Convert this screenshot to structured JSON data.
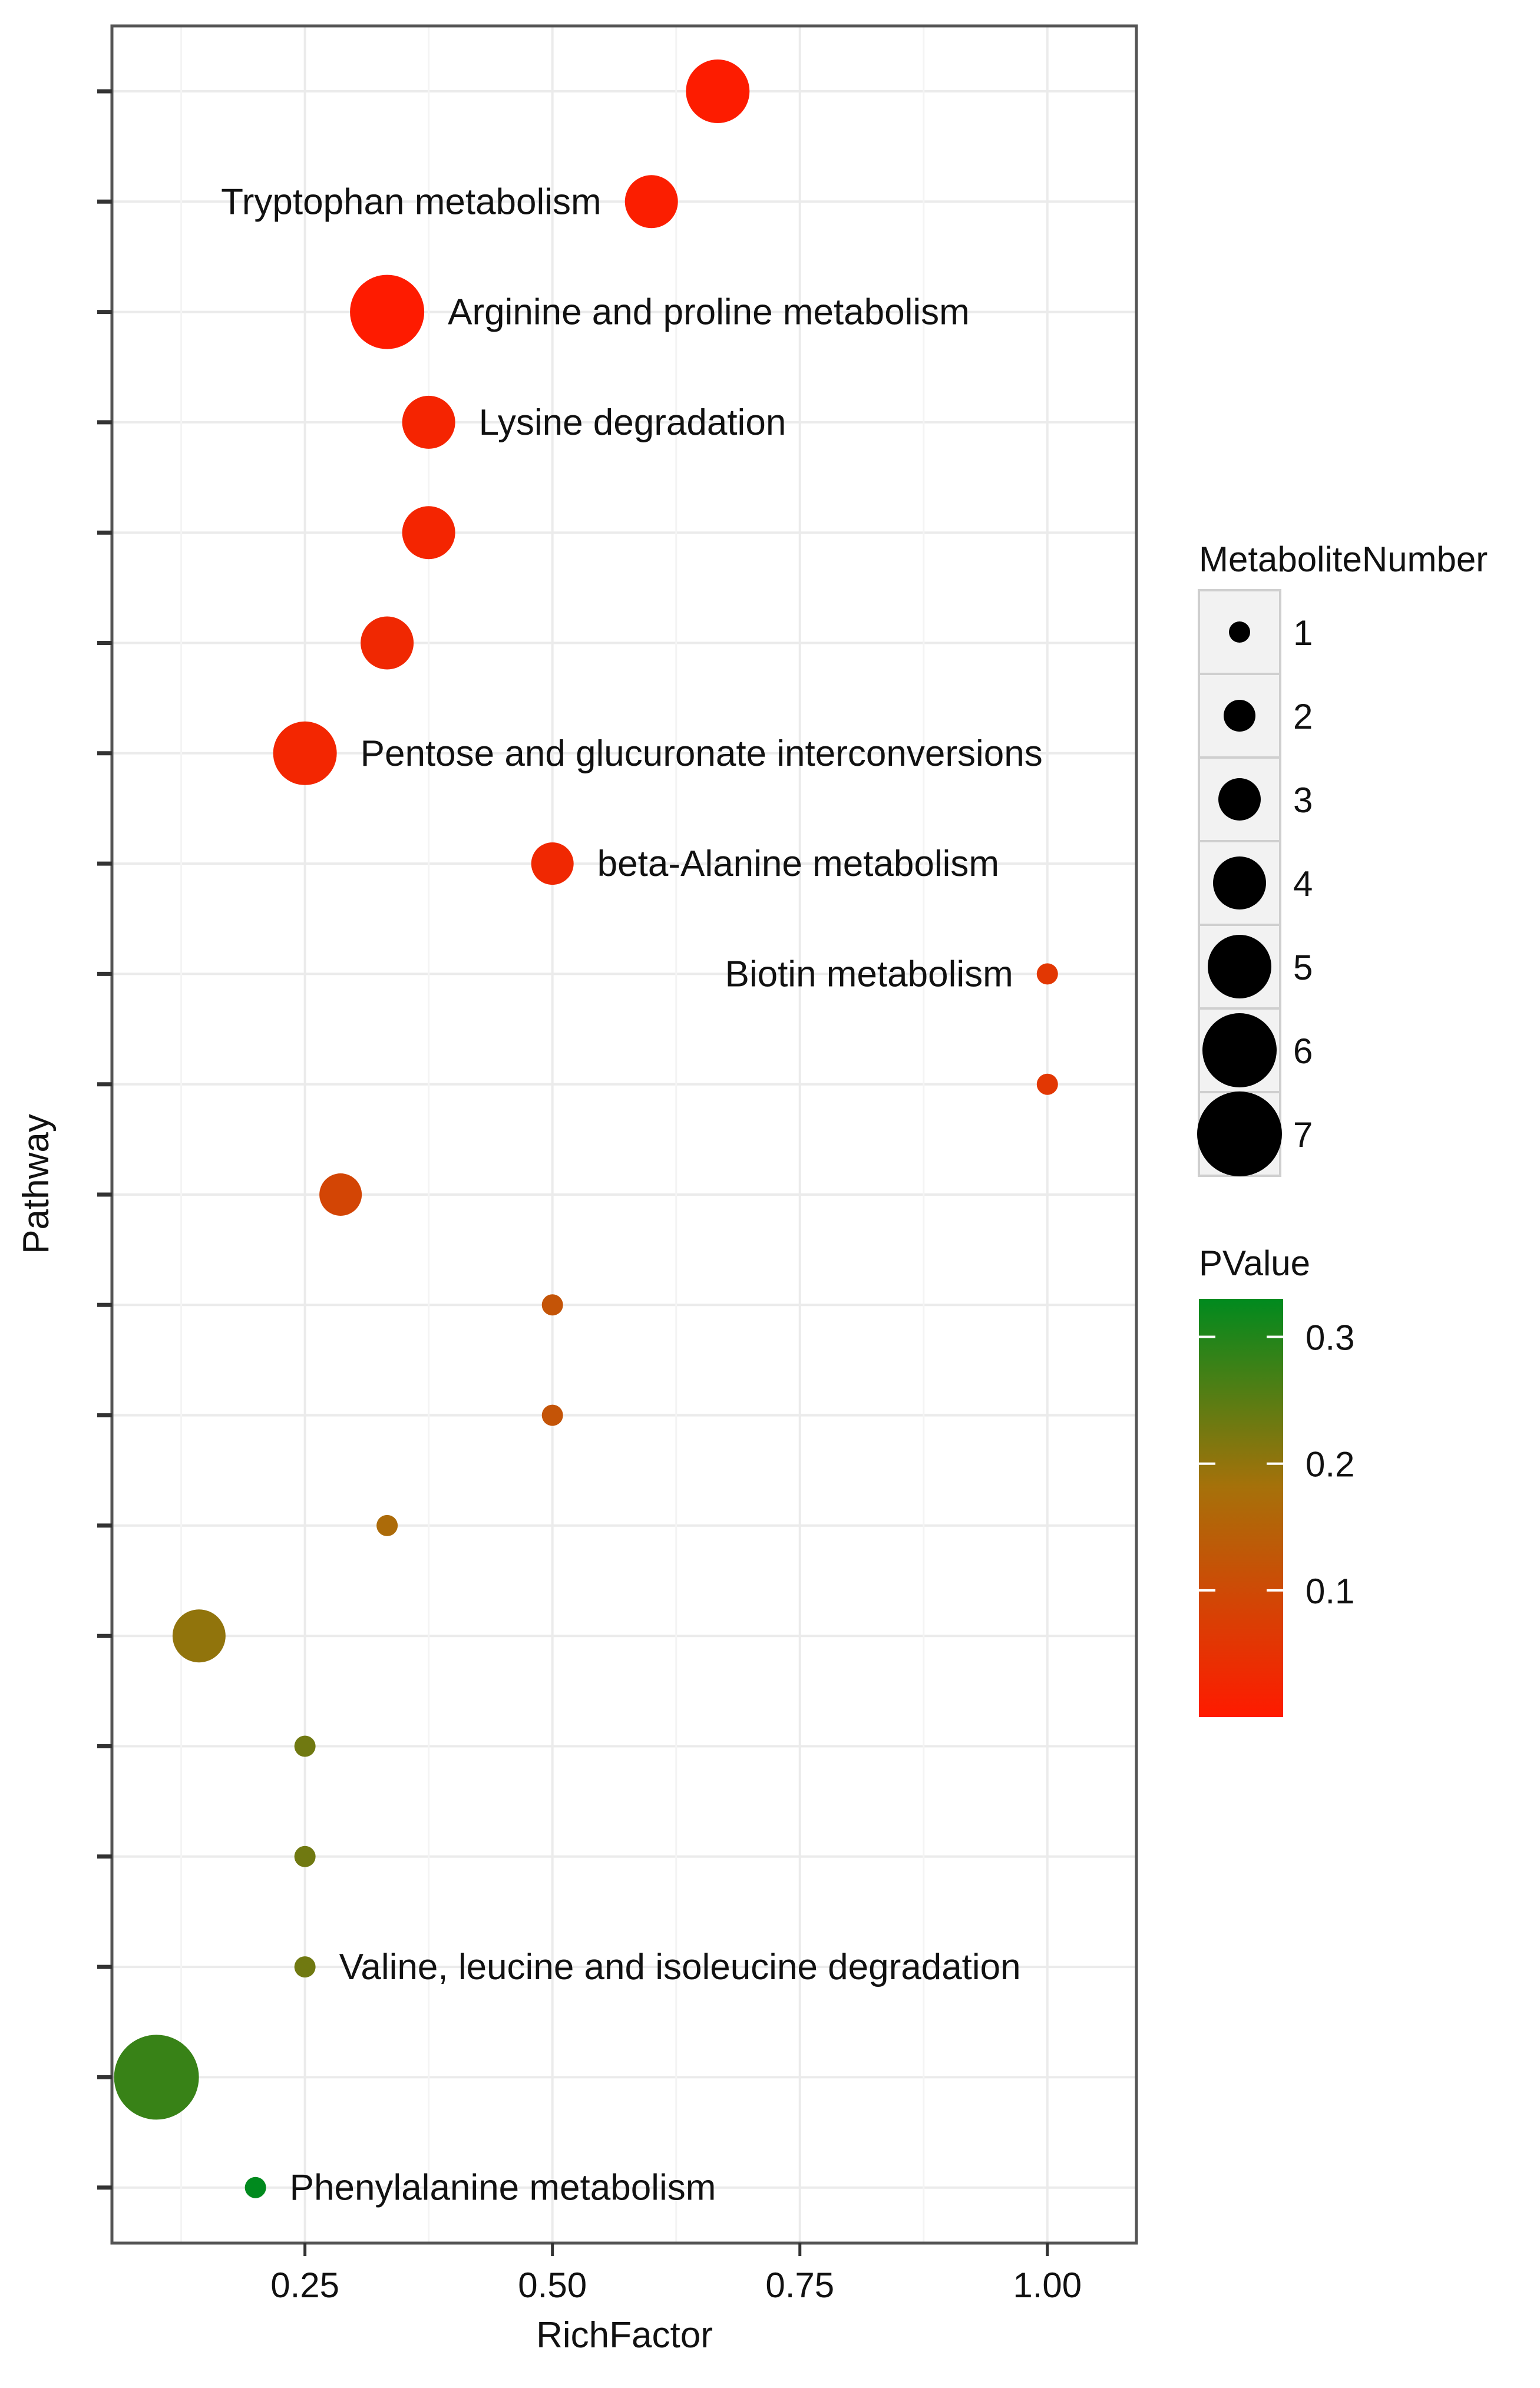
{
  "chart_data": {
    "type": "scatter",
    "xlabel": "RichFactor",
    "ylabel": "Pathway",
    "xlim": [
      0.055,
      1.09
    ],
    "x_ticks": [
      0.25,
      0.5,
      0.75,
      1.0
    ],
    "x_tick_labels": [
      "0.25",
      "0.50",
      "0.75",
      "1.00"
    ],
    "grid": true,
    "points": [
      {
        "row": 1,
        "x": 0.667,
        "size": 5,
        "pvalue": 0.004,
        "label": ""
      },
      {
        "row": 2,
        "x": 0.6,
        "size": 4,
        "pvalue": 0.008,
        "label": "Tryptophan metabolism",
        "label_side": "left"
      },
      {
        "row": 3,
        "x": 0.333,
        "size": 6,
        "pvalue": 0.003,
        "label": "Arginine and proline metabolism",
        "label_side": "right"
      },
      {
        "row": 4,
        "x": 0.375,
        "size": 4,
        "pvalue": 0.02,
        "label": "Lysine degradation",
        "label_side": "right"
      },
      {
        "row": 5,
        "x": 0.375,
        "size": 4,
        "pvalue": 0.022,
        "label": ""
      },
      {
        "row": 6,
        "x": 0.333,
        "size": 4,
        "pvalue": 0.03,
        "label": ""
      },
      {
        "row": 7,
        "x": 0.25,
        "size": 5,
        "pvalue": 0.025,
        "label": "Pentose and glucuronate interconversions",
        "label_side": "right"
      },
      {
        "row": 8,
        "x": 0.5,
        "size": 3,
        "pvalue": 0.03,
        "label": "beta-Alanine metabolism",
        "label_side": "right"
      },
      {
        "row": 9,
        "x": 1.0,
        "size": 1,
        "pvalue": 0.06,
        "label": "Biotin metabolism",
        "label_side": "left"
      },
      {
        "row": 10,
        "x": 1.0,
        "size": 1,
        "pvalue": 0.06,
        "label": ""
      },
      {
        "row": 11,
        "x": 0.286,
        "size": 3,
        "pvalue": 0.09,
        "label": ""
      },
      {
        "row": 12,
        "x": 0.5,
        "size": 1,
        "pvalue": 0.12,
        "label": ""
      },
      {
        "row": 13,
        "x": 0.5,
        "size": 1,
        "pvalue": 0.12,
        "label": ""
      },
      {
        "row": 14,
        "x": 0.333,
        "size": 1,
        "pvalue": 0.17,
        "label": ""
      },
      {
        "row": 15,
        "x": 0.143,
        "size": 4,
        "pvalue": 0.2,
        "label": ""
      },
      {
        "row": 16,
        "x": 0.25,
        "size": 1,
        "pvalue": 0.23,
        "label": ""
      },
      {
        "row": 17,
        "x": 0.25,
        "size": 1,
        "pvalue": 0.23,
        "label": ""
      },
      {
        "row": 18,
        "x": 0.25,
        "size": 1,
        "pvalue": 0.23,
        "label": "Valine, leucine and isoleucine degradation",
        "label_side": "right"
      },
      {
        "row": 19,
        "x": 0.1,
        "size": 7,
        "pvalue": 0.28,
        "label": ""
      },
      {
        "row": 20,
        "x": 0.2,
        "size": 1,
        "pvalue": 0.33,
        "label": "Phenylalanine metabolism",
        "label_side": "right"
      }
    ],
    "size_legend": {
      "title": "MetaboliteNumber",
      "values": [
        1,
        2,
        3,
        4,
        5,
        6,
        7
      ],
      "labels": [
        "1",
        "2",
        "3",
        "4",
        "5",
        "6",
        "7"
      ]
    },
    "color_legend": {
      "title": "PValue",
      "min": 0.0,
      "max": 0.33,
      "ticks": [
        0.1,
        0.2,
        0.3
      ],
      "tick_labels": [
        "0.1",
        "0.2",
        "0.3"
      ],
      "low_color": "#ff1a00",
      "mid_color": "#a6710a",
      "high_color": "#008a1e"
    }
  }
}
